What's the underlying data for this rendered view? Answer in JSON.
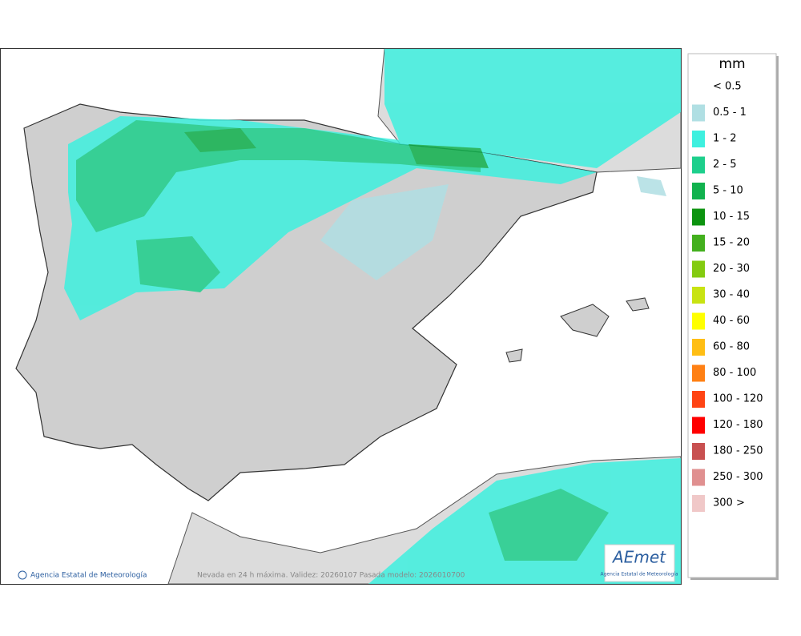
{
  "legend": {
    "title": "mm",
    "items": [
      {
        "label": "< 0.5"
      },
      {
        "label": "0.5 - 1",
        "color": "#b0dfe3"
      },
      {
        "label": "1 - 2",
        "color": "#3ef0df"
      },
      {
        "label": "2 - 5",
        "color": "#1dcf8c"
      },
      {
        "label": "5 - 10",
        "color": "#11b24e"
      },
      {
        "label": "10 - 15",
        "color": "#0c930f"
      },
      {
        "label": "15 - 20",
        "color": "#43b01e"
      },
      {
        "label": "20 - 30",
        "color": "#83cb10"
      },
      {
        "label": "30 - 40",
        "color": "#c8e312"
      },
      {
        "label": "40 - 60",
        "color": "#ffff00"
      },
      {
        "label": "60 - 80",
        "color": "#ffbe14"
      },
      {
        "label": "80 - 100",
        "color": "#ff8014"
      },
      {
        "label": "100 - 120",
        "color": "#ff4414"
      },
      {
        "label": "120 - 180",
        "color": "#ff0000"
      },
      {
        "label": "180 - 250",
        "color": "#c85050"
      },
      {
        "label": "250 - 300",
        "color": "#e09090"
      },
      {
        "label": "300 >",
        "color": "#f0c8c8"
      }
    ]
  },
  "footer": {
    "agency": "Agencia Estatal de Meteorología",
    "caption": "Nevada en 24 h máxima. Validez: 20260107 Pasada modelo: 2026010700"
  },
  "logo": {
    "name": "AEmet",
    "subtitle": "Agencia Estatal de Meteorología"
  }
}
